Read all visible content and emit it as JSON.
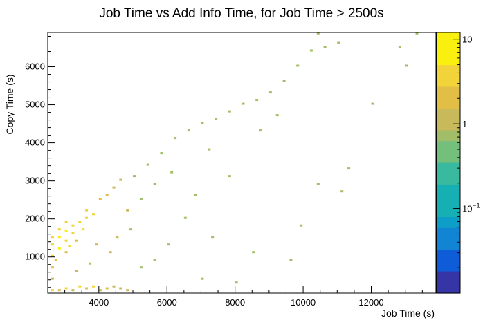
{
  "chart_data": {
    "type": "heatmap",
    "title": "Job Time vs Add Info Time, for Job Time > 2500s",
    "xlabel": "Job Time (s)",
    "ylabel": "Copy Time (s)",
    "xlim": [
      2500,
      13900
    ],
    "ylim": [
      50,
      6900
    ],
    "x_ticks": [
      4000,
      6000,
      8000,
      10000,
      12000
    ],
    "y_ticks": [
      1000,
      2000,
      3000,
      4000,
      5000,
      6000
    ],
    "x_tick_labels": [
      "4000",
      "6000",
      "8000",
      "10000",
      "12000"
    ],
    "y_tick_labels": [
      "1000",
      "2000",
      "3000",
      "4000",
      "5000",
      "6000"
    ],
    "colorbar": {
      "scale": "log",
      "min": 0.01,
      "max": 12,
      "ticks": [
        {
          "value": 10,
          "label": "10"
        },
        {
          "value": 1,
          "label": "1"
        },
        {
          "value": 0.1,
          "label": "10",
          "sup": "−1"
        }
      ],
      "palette": [
        "#3535a6",
        "#0f5cd8",
        "#1184d3",
        "#0d9ec8",
        "#16afb4",
        "#39b99d",
        "#74bf7c",
        "#a2bd68",
        "#c8b95b",
        "#e2be46",
        "#f2d43a",
        "#f9f00f"
      ]
    },
    "bins": [
      {
        "x": 2600,
        "y": 100,
        "count": 5
      },
      {
        "x": 2800,
        "y": 100,
        "count": 3
      },
      {
        "x": 3000,
        "y": 150,
        "count": 4
      },
      {
        "x": 3200,
        "y": 100,
        "count": 2
      },
      {
        "x": 3400,
        "y": 200,
        "count": 4
      },
      {
        "x": 3600,
        "y": 150,
        "count": 3
      },
      {
        "x": 3800,
        "y": 200,
        "count": 6
      },
      {
        "x": 4000,
        "y": 100,
        "count": 2
      },
      {
        "x": 4200,
        "y": 150,
        "count": 3
      },
      {
        "x": 4400,
        "y": 200,
        "count": 2
      },
      {
        "x": 4600,
        "y": 150,
        "count": 2
      },
      {
        "x": 4800,
        "y": 100,
        "count": 2
      },
      {
        "x": 2600,
        "y": 400,
        "count": 2
      },
      {
        "x": 2600,
        "y": 700,
        "count": 3
      },
      {
        "x": 2600,
        "y": 1000,
        "count": 5
      },
      {
        "x": 2600,
        "y": 1300,
        "count": 6
      },
      {
        "x": 2600,
        "y": 1500,
        "count": 5
      },
      {
        "x": 2800,
        "y": 1200,
        "count": 7
      },
      {
        "x": 2800,
        "y": 1500,
        "count": 8
      },
      {
        "x": 2800,
        "y": 1700,
        "count": 6
      },
      {
        "x": 3000,
        "y": 1400,
        "count": 6
      },
      {
        "x": 3000,
        "y": 1650,
        "count": 7
      },
      {
        "x": 3000,
        "y": 1900,
        "count": 5
      },
      {
        "x": 3200,
        "y": 1600,
        "count": 5
      },
      {
        "x": 3200,
        "y": 1800,
        "count": 6
      },
      {
        "x": 3400,
        "y": 1900,
        "count": 5
      },
      {
        "x": 3600,
        "y": 2000,
        "count": 6
      },
      {
        "x": 3600,
        "y": 2200,
        "count": 5
      },
      {
        "x": 3800,
        "y": 2100,
        "count": 4
      },
      {
        "x": 3500,
        "y": 1700,
        "count": 4
      },
      {
        "x": 2700,
        "y": 900,
        "count": 3
      },
      {
        "x": 3000,
        "y": 1100,
        "count": 3
      },
      {
        "x": 3100,
        "y": 1250,
        "count": 4
      },
      {
        "x": 3300,
        "y": 1400,
        "count": 3
      },
      {
        "x": 4000,
        "y": 2500,
        "count": 3
      },
      {
        "x": 4200,
        "y": 2600,
        "count": 3
      },
      {
        "x": 4400,
        "y": 2800,
        "count": 2
      },
      {
        "x": 4600,
        "y": 3000,
        "count": 2
      },
      {
        "x": 5000,
        "y": 3100,
        "count": 1
      },
      {
        "x": 5400,
        "y": 3400,
        "count": 1
      },
      {
        "x": 5800,
        "y": 3700,
        "count": 1
      },
      {
        "x": 6200,
        "y": 4100,
        "count": 1
      },
      {
        "x": 6600,
        "y": 4300,
        "count": 1
      },
      {
        "x": 7000,
        "y": 4500,
        "count": 1
      },
      {
        "x": 7400,
        "y": 4600,
        "count": 1
      },
      {
        "x": 7800,
        "y": 4800,
        "count": 1
      },
      {
        "x": 8200,
        "y": 5000,
        "count": 1
      },
      {
        "x": 8600,
        "y": 5100,
        "count": 1
      },
      {
        "x": 9000,
        "y": 5300,
        "count": 1
      },
      {
        "x": 9400,
        "y": 5600,
        "count": 1
      },
      {
        "x": 9800,
        "y": 6000,
        "count": 1
      },
      {
        "x": 10200,
        "y": 6400,
        "count": 1
      },
      {
        "x": 10600,
        "y": 6500,
        "count": 1
      },
      {
        "x": 11000,
        "y": 6600,
        "count": 1
      },
      {
        "x": 10400,
        "y": 6850,
        "count": 1
      },
      {
        "x": 12800,
        "y": 6500,
        "count": 1
      },
      {
        "x": 13300,
        "y": 6850,
        "count": 1
      },
      {
        "x": 13000,
        "y": 6000,
        "count": 1
      },
      {
        "x": 12000,
        "y": 5000,
        "count": 1
      },
      {
        "x": 11300,
        "y": 3300,
        "count": 1
      },
      {
        "x": 11100,
        "y": 2700,
        "count": 1
      },
      {
        "x": 10400,
        "y": 2900,
        "count": 1
      },
      {
        "x": 9900,
        "y": 1800,
        "count": 1
      },
      {
        "x": 9600,
        "y": 900,
        "count": 1
      },
      {
        "x": 8500,
        "y": 1100,
        "count": 1
      },
      {
        "x": 7300,
        "y": 1500,
        "count": 1
      },
      {
        "x": 6500,
        "y": 2000,
        "count": 1
      },
      {
        "x": 6000,
        "y": 1300,
        "count": 1
      },
      {
        "x": 5600,
        "y": 900,
        "count": 1
      },
      {
        "x": 5200,
        "y": 700,
        "count": 1
      },
      {
        "x": 7000,
        "y": 400,
        "count": 1
      },
      {
        "x": 8000,
        "y": 300,
        "count": 1
      },
      {
        "x": 4800,
        "y": 2200,
        "count": 2
      },
      {
        "x": 5200,
        "y": 2500,
        "count": 1
      },
      {
        "x": 5600,
        "y": 2900,
        "count": 1
      },
      {
        "x": 6100,
        "y": 3200,
        "count": 1
      },
      {
        "x": 7200,
        "y": 3800,
        "count": 1
      },
      {
        "x": 8700,
        "y": 4300,
        "count": 1
      },
      {
        "x": 9200,
        "y": 4700,
        "count": 1
      },
      {
        "x": 7800,
        "y": 3100,
        "count": 1
      },
      {
        "x": 6800,
        "y": 2600,
        "count": 1
      },
      {
        "x": 4500,
        "y": 1500,
        "count": 2
      },
      {
        "x": 4900,
        "y": 1700,
        "count": 1
      },
      {
        "x": 3900,
        "y": 1300,
        "count": 2
      },
      {
        "x": 4300,
        "y": 1100,
        "count": 2
      },
      {
        "x": 3700,
        "y": 800,
        "count": 2
      },
      {
        "x": 3300,
        "y": 600,
        "count": 2
      }
    ]
  }
}
